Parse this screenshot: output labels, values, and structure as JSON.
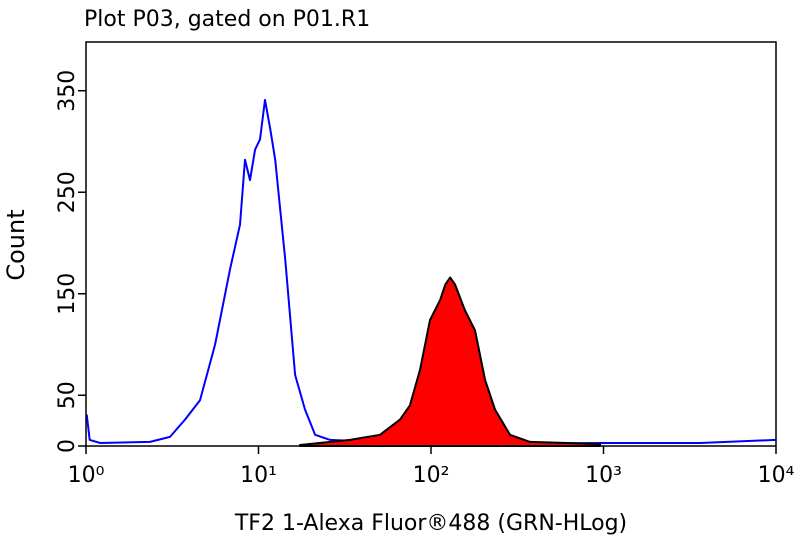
{
  "chart_data": {
    "type": "line",
    "title": "Plot P03, gated on P01.R1",
    "xlabel": "TF2 1-Alexa Fluor®488 (GRN-HLog)",
    "ylabel": "Count",
    "xscale": "log",
    "xlim": [
      1,
      10000
    ],
    "xticks": [
      {
        "value": 1,
        "label": "10⁰"
      },
      {
        "value": 10,
        "label": "10¹"
      },
      {
        "value": 100,
        "label": "10²"
      },
      {
        "value": 1000,
        "label": "10³"
      },
      {
        "value": 10000,
        "label": "10⁴"
      }
    ],
    "ylim": [
      0,
      398
    ],
    "yticks": [
      0,
      50,
      150,
      250,
      350
    ],
    "series": [
      {
        "color": "#0000ff",
        "fill": false,
        "x": [
          1.01,
          1.05,
          1.21,
          2.35,
          3.07,
          3.75,
          4.58,
          5.6,
          6.84,
          7.81,
          8.35,
          8.93,
          9.55,
          10.2,
          10.9,
          11.7,
          12.5,
          14.3,
          16.3,
          18.6,
          21.3,
          26.0,
          66.1,
          251,
          955,
          3625,
          10000
        ],
        "values": [
          31,
          6,
          3,
          4,
          9,
          26,
          45,
          100,
          174,
          218,
          282,
          262,
          292,
          302,
          341,
          312,
          282,
          183,
          70,
          36,
          11,
          6,
          3,
          2,
          3,
          3,
          6
        ]
      },
      {
        "color": "#ff0000",
        "fill": true,
        "x": [
          17.4,
          33.9,
          50.6,
          66.1,
          75.5,
          86.4,
          98.7,
          113,
          121,
          129,
          138,
          157,
          180,
          206,
          235,
          287,
          375,
          955
        ],
        "values": [
          1,
          6,
          11,
          26,
          40,
          75,
          124,
          144,
          159,
          166,
          159,
          134,
          114,
          65,
          36,
          11,
          4,
          2
        ]
      }
    ]
  }
}
